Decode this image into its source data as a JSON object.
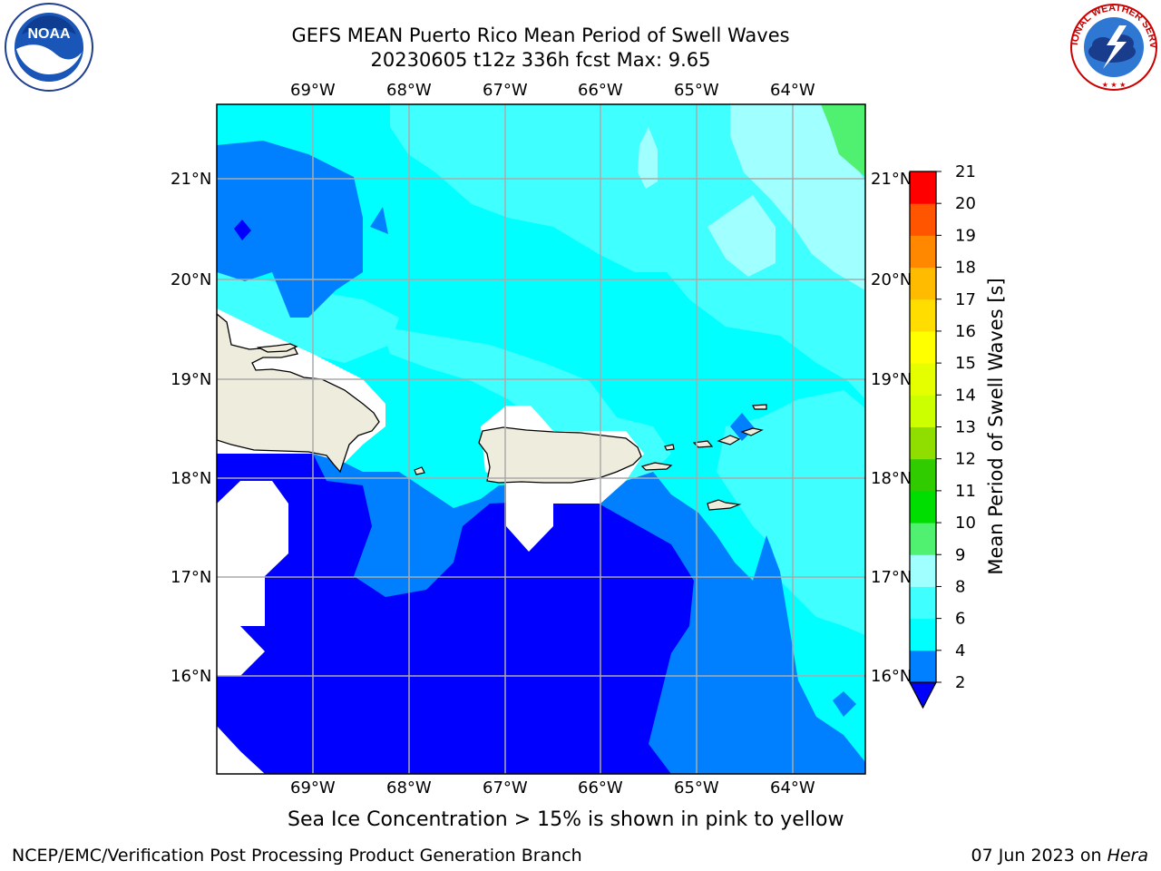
{
  "header": {
    "title_line1": "GEFS MEAN Puerto Rico Mean Period of Swell Waves",
    "title_line2": "20230605 t12z 336h fcst   Max: 9.65"
  },
  "logos": {
    "left": {
      "icon": "noaa-logo",
      "text": "NOAA"
    },
    "right": {
      "icon": "nws-logo",
      "text": "NATIONAL WEATHER SERVICE"
    }
  },
  "map": {
    "lon_labels": [
      "69°W",
      "68°W",
      "67°W",
      "66°W",
      "65°W",
      "64°W"
    ],
    "lat_labels": [
      "21°N",
      "20°N",
      "19°N",
      "18°N",
      "17°N",
      "16°N"
    ],
    "land_color": "#eeecdc",
    "gridline_color": "#aaaaaa"
  },
  "colorbar": {
    "label": "Mean Period of Swell Waves [s]",
    "ticks": [
      "2",
      "4",
      "6",
      "8",
      "9",
      "10",
      "11",
      "12",
      "13",
      "14",
      "15",
      "16",
      "17",
      "18",
      "19",
      "20",
      "21"
    ],
    "under_color": "#0000ff",
    "colors": [
      "#0080ff",
      "#00ffff",
      "#40ffff",
      "#a0ffff",
      "#50f070",
      "#00dd00",
      "#30cc00",
      "#90dd00",
      "#ccff00",
      "#e6ff00",
      "#ffff00",
      "#ffdd00",
      "#ffbb00",
      "#ff8800",
      "#ff5500",
      "#ff0000"
    ]
  },
  "caption": "Sea Ice Concentration > 15% is shown in pink to yellow",
  "footer": {
    "left": "NCEP/EMC/Verification Post Processing Product Generation Branch",
    "right_prefix": "07 Jun 2023 on ",
    "right_host": "Hera"
  }
}
